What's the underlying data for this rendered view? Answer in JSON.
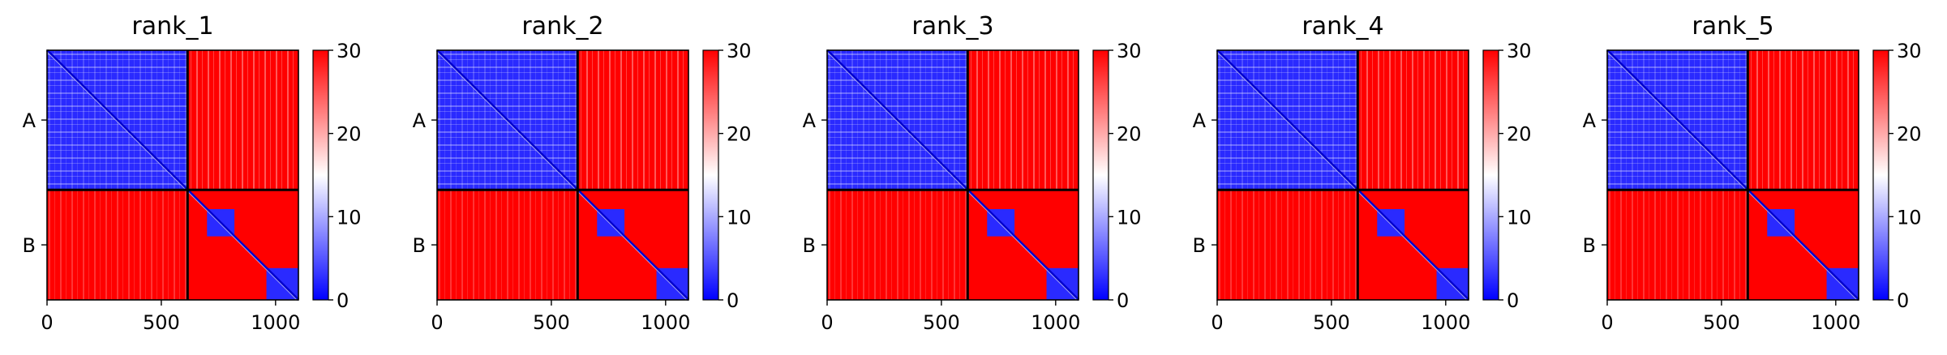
{
  "chart_data": {
    "type": "heatmap",
    "colormap": [
      "#0000ff",
      "#ffffff",
      "#ff0000"
    ],
    "colorbar": {
      "min": 0,
      "max": 30,
      "ticks": [
        "0",
        "10",
        "20",
        "30"
      ]
    },
    "x_ticks": [
      0,
      500,
      1000
    ],
    "x_tick_labels": [
      "0",
      "500",
      "1000"
    ],
    "xlim": [
      0,
      1100
    ],
    "chain_boundary": 615,
    "chains": [
      {
        "label": "A",
        "start": 0,
        "end": 615
      },
      {
        "label": "B",
        "start": 615,
        "end": 1100
      }
    ],
    "domain_blocks": [
      [
        0,
        615
      ],
      [
        700,
        820
      ],
      [
        960,
        1100
      ]
    ],
    "panels": [
      {
        "title": "rank_1"
      },
      {
        "title": "rank_2"
      },
      {
        "title": "rank_3"
      },
      {
        "title": "rank_4"
      },
      {
        "title": "rank_5"
      }
    ]
  }
}
